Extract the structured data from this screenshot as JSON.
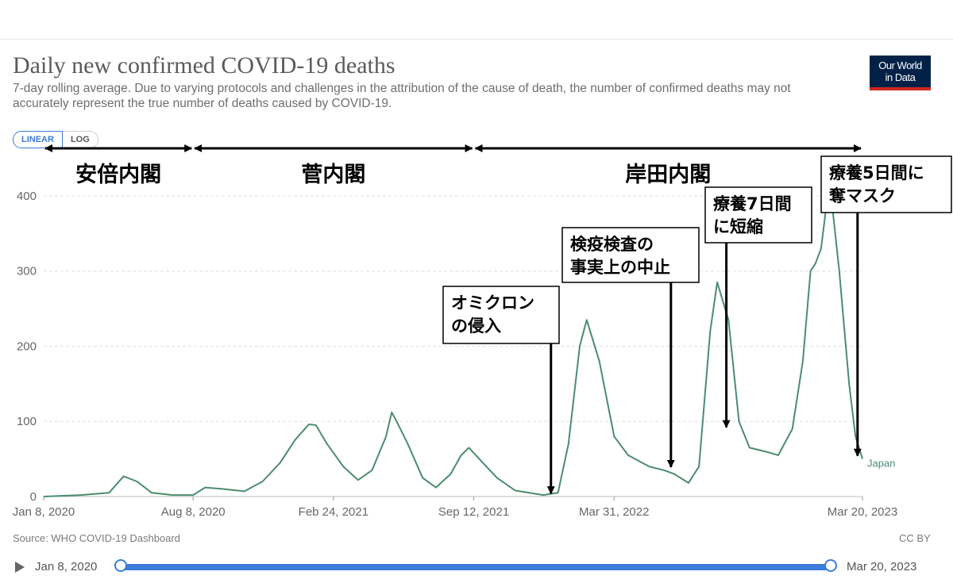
{
  "header": {
    "title": "Daily new confirmed COVID-19 deaths",
    "subtitle": "7-day rolling average. Due to varying protocols and challenges in the attribution of the cause of death, the number of confirmed deaths may not accurately represent the true number of deaths caused by COVID-19.",
    "logo_line1": "Our World",
    "logo_line2": "in Data"
  },
  "controls": {
    "linear_label": "LINEAR",
    "log_label": "LOG"
  },
  "footer": {
    "source": "Source: WHO COVID-19 Dashboard",
    "license": "CC BY"
  },
  "timeline": {
    "start": "Jan 8, 2020",
    "end": "Mar 20, 2023"
  },
  "colors": {
    "line": "#4c8c6e",
    "accent": "#3b7dd8",
    "logo_bg": "#002147",
    "logo_bar": "#ce261e"
  },
  "annotations": {
    "periods": [
      {
        "label": "安倍内閣",
        "from": "2020-01-08",
        "to": "2020-08-08"
      },
      {
        "label": "菅内閣",
        "from": "2020-08-08",
        "to": "2021-09-12"
      },
      {
        "label": "岸田内閣",
        "from": "2021-09-12",
        "to": "2023-03-20"
      }
    ],
    "boxes": [
      {
        "lines": [
          "オミクロン",
          "の侵入"
        ],
        "arrow_date": "2021-12-31"
      },
      {
        "lines": [
          "検疫検査の",
          "事実上の中止"
        ],
        "arrow_date": "2022-06-20"
      },
      {
        "lines": [
          "療養7日間",
          "に短縮"
        ],
        "arrow_date": "2022-09-07"
      },
      {
        "lines": [
          "療養5日間に",
          "奪マスク"
        ],
        "arrow_date": "2023-03-13"
      }
    ]
  },
  "chart_data": {
    "type": "line",
    "title": "Daily new confirmed COVID-19 deaths",
    "xlabel": "",
    "ylabel": "",
    "ylim": [
      0,
      420
    ],
    "yticks": [
      0,
      100,
      200,
      300,
      400
    ],
    "xticks": [
      "Jan 8, 2020",
      "Aug 8, 2020",
      "Feb 24, 2021",
      "Sep 12, 2021",
      "Mar 31, 2022",
      "Mar 20, 2023"
    ],
    "xtick_dates": [
      "2020-01-08",
      "2020-08-08",
      "2021-02-24",
      "2021-09-12",
      "2022-03-31",
      "2023-03-20"
    ],
    "grid": "horizontal dashed",
    "series": [
      {
        "name": "Japan",
        "x": [
          "2020-01-08",
          "2020-03-01",
          "2020-04-10",
          "2020-05-01",
          "2020-05-20",
          "2020-06-10",
          "2020-07-10",
          "2020-08-08",
          "2020-08-25",
          "2020-09-20",
          "2020-10-20",
          "2020-11-15",
          "2020-12-10",
          "2020-12-31",
          "2021-01-20",
          "2021-01-30",
          "2021-02-15",
          "2021-03-10",
          "2021-03-31",
          "2021-04-20",
          "2021-05-10",
          "2021-05-18",
          "2021-05-25",
          "2021-06-10",
          "2021-07-01",
          "2021-07-20",
          "2021-08-10",
          "2021-08-25",
          "2021-09-05",
          "2021-09-25",
          "2021-10-15",
          "2021-11-10",
          "2021-12-20",
          "2022-01-10",
          "2022-01-25",
          "2022-02-10",
          "2022-02-20",
          "2022-03-10",
          "2022-03-31",
          "2022-04-20",
          "2022-05-20",
          "2022-06-10",
          "2022-06-25",
          "2022-07-15",
          "2022-07-30",
          "2022-08-15",
          "2022-08-25",
          "2022-09-10",
          "2022-09-25",
          "2022-10-10",
          "2022-11-01",
          "2022-11-20",
          "2022-12-10",
          "2022-12-25",
          "2023-01-05",
          "2023-01-12",
          "2023-01-20",
          "2023-02-01",
          "2023-02-15",
          "2023-03-01",
          "2023-03-10",
          "2023-03-20"
        ],
        "y": [
          0,
          2,
          5,
          27,
          20,
          5,
          2,
          2,
          12,
          10,
          7,
          20,
          45,
          75,
          96,
          95,
          70,
          40,
          22,
          35,
          80,
          112,
          100,
          70,
          25,
          12,
          30,
          55,
          65,
          45,
          25,
          8,
          2,
          5,
          70,
          200,
          235,
          180,
          80,
          55,
          40,
          35,
          30,
          18,
          40,
          220,
          285,
          235,
          100,
          65,
          60,
          55,
          90,
          180,
          300,
          310,
          330,
          420,
          300,
          150,
          80,
          50
        ]
      }
    ]
  }
}
